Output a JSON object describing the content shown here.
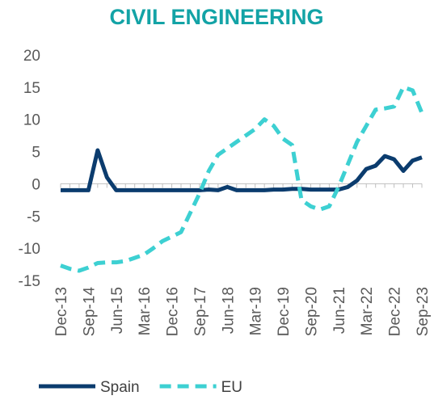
{
  "chart_data": {
    "type": "line",
    "title": "CIVIL ENGINEERING",
    "categories": [
      "Dec-13",
      null,
      null,
      "Sep-14",
      null,
      null,
      "Jun-15",
      null,
      null,
      "Mar-16",
      null,
      null,
      "Dec-16",
      null,
      null,
      "Sep-17",
      null,
      null,
      "Jun-18",
      null,
      null,
      "Mar-19",
      null,
      null,
      "Dec-19",
      null,
      null,
      "Sep-20",
      null,
      null,
      "Jun-21",
      null,
      null,
      "Mar-22",
      null,
      null,
      "Dec-22",
      null,
      null,
      "Sep-23"
    ],
    "series": [
      {
        "name": "Spain",
        "color": "#0b3c6e",
        "dash": false,
        "values": [
          -1,
          -1,
          -1,
          -1,
          5.2,
          1,
          -1,
          -1,
          -1,
          -1,
          -1,
          -1,
          -1,
          -1,
          -1,
          -1,
          -0.9,
          -1,
          -0.5,
          -1,
          -1,
          -1,
          -1,
          -0.9,
          -0.9,
          -0.8,
          -0.8,
          -0.9,
          -0.9,
          -0.9,
          -0.9,
          -0.5,
          0.5,
          2.3,
          2.8,
          4.3,
          3.8,
          2,
          3.6,
          4.1
        ]
      },
      {
        "name": "EU",
        "color": "#3dd0d2",
        "dash": true,
        "values": [
          -12.7,
          -13.2,
          -13.5,
          -13,
          -12.3,
          -12.2,
          -12.2,
          -12,
          -11.5,
          -11,
          -10,
          -8.9,
          -8.2,
          -7.5,
          -4.5,
          -1.5,
          2,
          4.5,
          5.5,
          6.5,
          7.5,
          8.5,
          10,
          9,
          7,
          6,
          -2.5,
          -3.5,
          -4,
          -3.5,
          -0.5,
          3,
          6.5,
          9,
          11.5,
          11.7,
          12,
          15,
          14.5,
          11
        ]
      }
    ],
    "ylim": [
      -15,
      20
    ],
    "yticks": [
      -15,
      -10,
      -5,
      0,
      5,
      10,
      15,
      20
    ],
    "legend": "bottom"
  }
}
